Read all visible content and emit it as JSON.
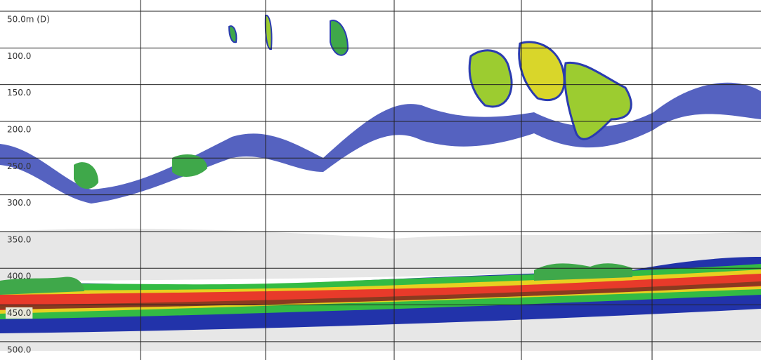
{
  "chart_data": {
    "type": "echogram",
    "ylim": [
      34.7,
      525
    ],
    "yticks": [
      {
        "value": 50,
        "label": "50.0m (D)"
      },
      {
        "value": 100,
        "label": "100.0"
      },
      {
        "value": 150,
        "label": "150.0"
      },
      {
        "value": 200,
        "label": "200.0"
      },
      {
        "value": 250,
        "label": "250.0"
      },
      {
        "value": 300,
        "label": "300.0"
      },
      {
        "value": 350,
        "label": "350.0"
      },
      {
        "value": 400,
        "label": "400.0"
      },
      {
        "value": 450,
        "label": "450.0"
      },
      {
        "value": 500,
        "label": "500.0"
      }
    ],
    "grid": true
  }
}
